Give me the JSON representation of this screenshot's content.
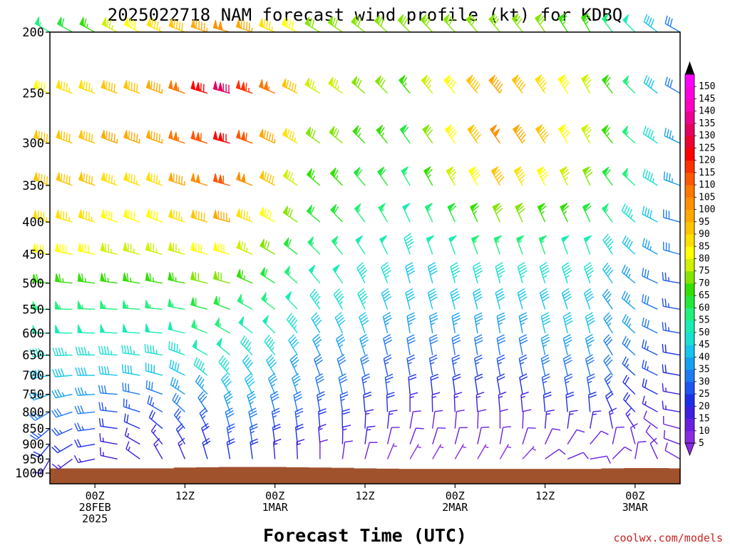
{
  "chart_data": {
    "type": "wind-barb time-height",
    "title": "2025022718 NAM forecast wind profile (kt) for KDBQ",
    "xlabel": "Forecast Time (UTC)",
    "ylabel": "",
    "credit": "coolwx.com/models",
    "y_levels": [
      200,
      250,
      300,
      350,
      400,
      450,
      500,
      550,
      600,
      650,
      700,
      750,
      800,
      850,
      900,
      950,
      1000
    ],
    "y_scale": "log pressure (hPa), inverted",
    "x_ticks": [
      {
        "hour": 6,
        "lines": [
          "00Z",
          "28FEB",
          "2025"
        ]
      },
      {
        "hour": 18,
        "lines": [
          "12Z"
        ]
      },
      {
        "hour": 30,
        "lines": [
          "00Z",
          "1MAR"
        ]
      },
      {
        "hour": 42,
        "lines": [
          "12Z"
        ]
      },
      {
        "hour": 54,
        "lines": [
          "00Z",
          "2MAR"
        ]
      },
      {
        "hour": 66,
        "lines": [
          "12Z"
        ]
      },
      {
        "hour": 78,
        "lines": [
          "00Z",
          "3MAR"
        ]
      }
    ],
    "x_range_hours": [
      0,
      84
    ],
    "time_step_hours": 3,
    "colorbar": {
      "ticks": [
        5,
        10,
        15,
        20,
        25,
        30,
        35,
        40,
        45,
        50,
        55,
        60,
        65,
        70,
        75,
        80,
        85,
        90,
        95,
        100,
        105,
        110,
        115,
        120,
        125,
        130,
        135,
        140,
        145,
        150
      ],
      "colors": [
        "#8a2be2",
        "#6a1fe0",
        "#3f1fe0",
        "#1c2fe8",
        "#1f55f0",
        "#1e7cf2",
        "#16a0f0",
        "#16c4f0",
        "#19e0d0",
        "#19ecb4",
        "#22f07c",
        "#22e83a",
        "#33e000",
        "#84e600",
        "#d0f000",
        "#ffff00",
        "#ffe000",
        "#ffc400",
        "#ffa800",
        "#ff9000",
        "#ff7800",
        "#ff5800",
        "#ff3000",
        "#ff0000",
        "#ee0030",
        "#e40060",
        "#ee0090",
        "#ff00c0",
        "#ff00e0",
        "#ff00ff"
      ]
    },
    "surface_pressure": [
      983,
      983,
      983,
      983,
      983,
      983,
      980,
      979,
      978,
      978,
      978,
      979,
      980,
      981,
      983,
      984,
      985,
      985,
      985,
      985,
      985,
      985,
      985,
      985,
      985,
      983,
      982,
      982,
      983
    ],
    "profile_anchors": [
      {
        "hour": 0,
        "speeds": [
          55,
          80,
          90,
          90,
          85,
          80,
          65,
          55,
          50,
          45,
          40,
          35,
          30,
          25,
          20,
          15,
          10
        ],
        "dirs": [
          300,
          290,
          290,
          290,
          285,
          280,
          275,
          270,
          270,
          265,
          260,
          250,
          240,
          230,
          220,
          210,
          200
        ]
      },
      {
        "hour": 15,
        "speeds": [
          85,
          95,
          95,
          85,
          80,
          75,
          65,
          55,
          50,
          45,
          40,
          30,
          25,
          20,
          15,
          15,
          10
        ],
        "dirs": [
          295,
          290,
          290,
          290,
          290,
          285,
          280,
          275,
          275,
          280,
          285,
          290,
          300,
          310,
          320,
          330,
          340
        ]
      },
      {
        "hour": 24,
        "speeds": [
          100,
          130,
          120,
          110,
          95,
          80,
          70,
          60,
          55,
          50,
          45,
          40,
          35,
          30,
          25,
          20,
          15
        ],
        "dirs": [
          285,
          285,
          285,
          285,
          285,
          285,
          285,
          290,
          300,
          310,
          320,
          330,
          340,
          345,
          350,
          350,
          350
        ]
      },
      {
        "hour": 36,
        "speeds": [
          70,
          75,
          70,
          65,
          60,
          55,
          50,
          45,
          40,
          35,
          30,
          30,
          25,
          20,
          15,
          10,
          10
        ],
        "dirs": [
          300,
          300,
          305,
          310,
          310,
          315,
          320,
          325,
          330,
          335,
          340,
          345,
          350,
          355,
          355,
          0,
          0
        ]
      },
      {
        "hour": 48,
        "speeds": [
          70,
          65,
          60,
          55,
          50,
          45,
          40,
          40,
          35,
          30,
          25,
          20,
          15,
          10,
          10,
          5,
          5
        ],
        "dirs": [
          315,
          320,
          325,
          330,
          335,
          340,
          345,
          345,
          350,
          350,
          350,
          355,
          0,
          10,
          20,
          30,
          30
        ]
      },
      {
        "hour": 60,
        "speeds": [
          70,
          95,
          100,
          90,
          70,
          55,
          45,
          40,
          35,
          30,
          25,
          20,
          15,
          10,
          10,
          5,
          5
        ],
        "dirs": [
          320,
          320,
          325,
          330,
          335,
          340,
          345,
          345,
          350,
          350,
          350,
          350,
          355,
          0,
          10,
          30,
          60
        ]
      },
      {
        "hour": 72,
        "speeds": [
          65,
          75,
          75,
          70,
          60,
          50,
          45,
          40,
          40,
          35,
          30,
          25,
          20,
          15,
          10,
          10,
          10
        ],
        "dirs": [
          330,
          330,
          330,
          335,
          335,
          340,
          340,
          340,
          345,
          345,
          345,
          350,
          355,
          10,
          40,
          80,
          100
        ]
      },
      {
        "hour": 84,
        "speeds": [
          30,
          30,
          35,
          35,
          30,
          30,
          25,
          25,
          25,
          20,
          20,
          15,
          15,
          10,
          10,
          10,
          10
        ],
        "dirs": [
          300,
          300,
          295,
          290,
          285,
          285,
          280,
          280,
          280,
          280,
          280,
          280,
          280,
          285,
          290,
          300,
          300
        ]
      }
    ]
  }
}
